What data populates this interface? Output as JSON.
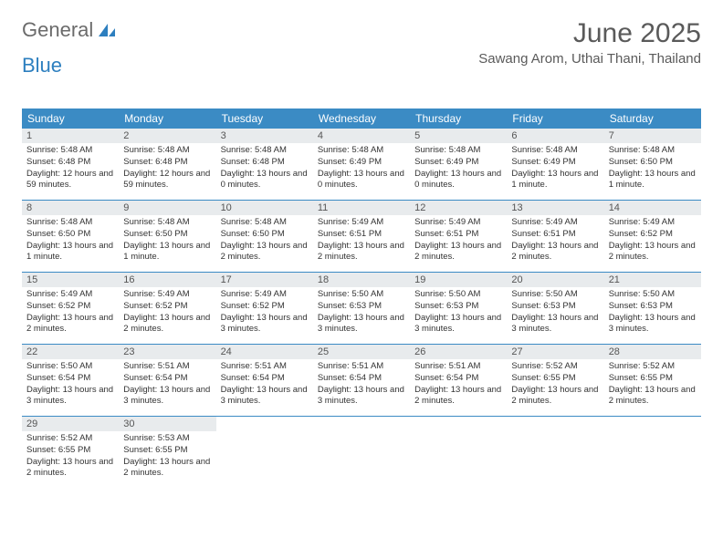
{
  "logo": {
    "text1": "General",
    "text2": "Blue"
  },
  "title": "June 2025",
  "location": "Sawang Arom, Uthai Thani, Thailand",
  "colors": {
    "header_bg": "#3b8bc4",
    "header_text": "#ffffff",
    "daynum_bg": "#e8ebed",
    "border": "#3b8bc4",
    "logo_gray": "#6b6b6b",
    "logo_blue": "#2d7fbf"
  },
  "weekdays": [
    "Sunday",
    "Monday",
    "Tuesday",
    "Wednesday",
    "Thursday",
    "Friday",
    "Saturday"
  ],
  "days": [
    {
      "n": 1,
      "sunrise": "5:48 AM",
      "sunset": "6:48 PM",
      "daylight": "12 hours and 59 minutes."
    },
    {
      "n": 2,
      "sunrise": "5:48 AM",
      "sunset": "6:48 PM",
      "daylight": "12 hours and 59 minutes."
    },
    {
      "n": 3,
      "sunrise": "5:48 AM",
      "sunset": "6:48 PM",
      "daylight": "13 hours and 0 minutes."
    },
    {
      "n": 4,
      "sunrise": "5:48 AM",
      "sunset": "6:49 PM",
      "daylight": "13 hours and 0 minutes."
    },
    {
      "n": 5,
      "sunrise": "5:48 AM",
      "sunset": "6:49 PM",
      "daylight": "13 hours and 0 minutes."
    },
    {
      "n": 6,
      "sunrise": "5:48 AM",
      "sunset": "6:49 PM",
      "daylight": "13 hours and 1 minute."
    },
    {
      "n": 7,
      "sunrise": "5:48 AM",
      "sunset": "6:50 PM",
      "daylight": "13 hours and 1 minute."
    },
    {
      "n": 8,
      "sunrise": "5:48 AM",
      "sunset": "6:50 PM",
      "daylight": "13 hours and 1 minute."
    },
    {
      "n": 9,
      "sunrise": "5:48 AM",
      "sunset": "6:50 PM",
      "daylight": "13 hours and 1 minute."
    },
    {
      "n": 10,
      "sunrise": "5:48 AM",
      "sunset": "6:50 PM",
      "daylight": "13 hours and 2 minutes."
    },
    {
      "n": 11,
      "sunrise": "5:49 AM",
      "sunset": "6:51 PM",
      "daylight": "13 hours and 2 minutes."
    },
    {
      "n": 12,
      "sunrise": "5:49 AM",
      "sunset": "6:51 PM",
      "daylight": "13 hours and 2 minutes."
    },
    {
      "n": 13,
      "sunrise": "5:49 AM",
      "sunset": "6:51 PM",
      "daylight": "13 hours and 2 minutes."
    },
    {
      "n": 14,
      "sunrise": "5:49 AM",
      "sunset": "6:52 PM",
      "daylight": "13 hours and 2 minutes."
    },
    {
      "n": 15,
      "sunrise": "5:49 AM",
      "sunset": "6:52 PM",
      "daylight": "13 hours and 2 minutes."
    },
    {
      "n": 16,
      "sunrise": "5:49 AM",
      "sunset": "6:52 PM",
      "daylight": "13 hours and 2 minutes."
    },
    {
      "n": 17,
      "sunrise": "5:49 AM",
      "sunset": "6:52 PM",
      "daylight": "13 hours and 3 minutes."
    },
    {
      "n": 18,
      "sunrise": "5:50 AM",
      "sunset": "6:53 PM",
      "daylight": "13 hours and 3 minutes."
    },
    {
      "n": 19,
      "sunrise": "5:50 AM",
      "sunset": "6:53 PM",
      "daylight": "13 hours and 3 minutes."
    },
    {
      "n": 20,
      "sunrise": "5:50 AM",
      "sunset": "6:53 PM",
      "daylight": "13 hours and 3 minutes."
    },
    {
      "n": 21,
      "sunrise": "5:50 AM",
      "sunset": "6:53 PM",
      "daylight": "13 hours and 3 minutes."
    },
    {
      "n": 22,
      "sunrise": "5:50 AM",
      "sunset": "6:54 PM",
      "daylight": "13 hours and 3 minutes."
    },
    {
      "n": 23,
      "sunrise": "5:51 AM",
      "sunset": "6:54 PM",
      "daylight": "13 hours and 3 minutes."
    },
    {
      "n": 24,
      "sunrise": "5:51 AM",
      "sunset": "6:54 PM",
      "daylight": "13 hours and 3 minutes."
    },
    {
      "n": 25,
      "sunrise": "5:51 AM",
      "sunset": "6:54 PM",
      "daylight": "13 hours and 3 minutes."
    },
    {
      "n": 26,
      "sunrise": "5:51 AM",
      "sunset": "6:54 PM",
      "daylight": "13 hours and 2 minutes."
    },
    {
      "n": 27,
      "sunrise": "5:52 AM",
      "sunset": "6:55 PM",
      "daylight": "13 hours and 2 minutes."
    },
    {
      "n": 28,
      "sunrise": "5:52 AM",
      "sunset": "6:55 PM",
      "daylight": "13 hours and 2 minutes."
    },
    {
      "n": 29,
      "sunrise": "5:52 AM",
      "sunset": "6:55 PM",
      "daylight": "13 hours and 2 minutes."
    },
    {
      "n": 30,
      "sunrise": "5:53 AM",
      "sunset": "6:55 PM",
      "daylight": "13 hours and 2 minutes."
    }
  ],
  "labels": {
    "sunrise": "Sunrise:",
    "sunset": "Sunset:",
    "daylight": "Daylight:"
  },
  "layout": {
    "start_weekday": 0,
    "total_cells": 35
  }
}
